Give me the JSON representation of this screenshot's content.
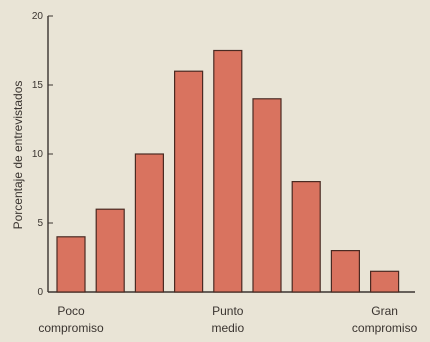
{
  "chart_data": {
    "type": "bar",
    "ylabel": "Porcentaje de entrevistados",
    "xlabel": "",
    "ylim": [
      0,
      20
    ],
    "yticks": [
      0,
      5,
      10,
      15,
      20
    ],
    "categories": [
      "1",
      "2",
      "3",
      "4",
      "5",
      "6",
      "7",
      "8",
      "9"
    ],
    "values": [
      4,
      6,
      10,
      16,
      17.5,
      14,
      8,
      3,
      1.5
    ],
    "x_labels": [
      {
        "index": 0,
        "lines": [
          "Poco",
          "compromiso"
        ]
      },
      {
        "index": 4,
        "lines": [
          "Punto",
          "medio"
        ]
      },
      {
        "index": 8,
        "lines": [
          "Gran",
          "compromiso"
        ]
      }
    ],
    "grid": false,
    "colors": {
      "bar": "#d9735f",
      "bar_edge": "#4a2a22",
      "axis": "#3a3430",
      "background": "#e9e4d6"
    }
  }
}
